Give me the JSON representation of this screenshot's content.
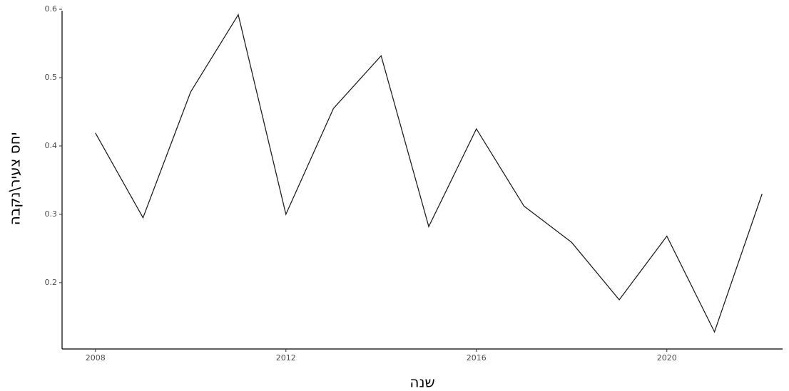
{
  "chart_data": {
    "type": "line",
    "x_label": "שנה",
    "y_label": "יחס צעיר\\נקבה",
    "x": [
      2008,
      2009,
      2010,
      2011,
      2012,
      2013,
      2014,
      2015,
      2016,
      2017,
      2018,
      2019,
      2020,
      2021,
      2022
    ],
    "values": [
      0.419,
      0.295,
      0.479,
      0.592,
      0.3,
      0.455,
      0.532,
      0.282,
      0.425,
      0.312,
      0.259,
      0.175,
      0.268,
      0.128,
      0.33
    ],
    "color": "#222222",
    "xlim": [
      2007.3,
      2022.43
    ],
    "xticks": [
      2008,
      2012,
      2016,
      2020
    ],
    "ylim": [
      0.103,
      0.6
    ],
    "yticks": [
      0.2,
      0.3,
      0.4,
      0.5,
      0.6
    ],
    "grid": false
  }
}
